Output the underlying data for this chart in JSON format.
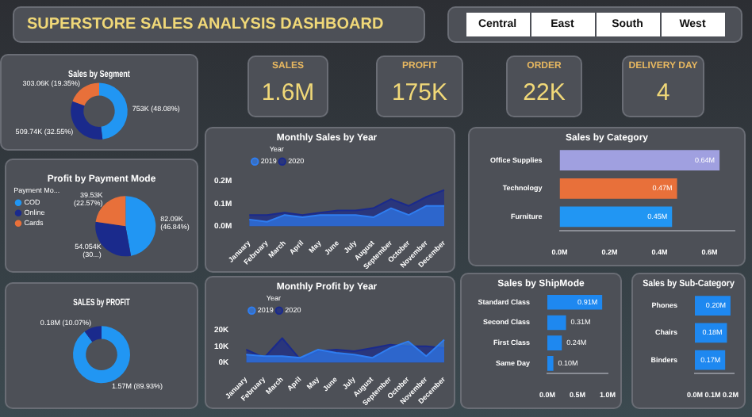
{
  "chart_data": [
    {
      "type": "other",
      "title": "SUPERSTORE SALES ANALYSIS  DASHBOARD"
    },
    {
      "type": "other",
      "annotations": [
        "Central",
        "East",
        "South",
        "West"
      ]
    },
    {
      "type": "donut",
      "title": "Sales by Segment",
      "categories": [
        null,
        null,
        null
      ],
      "values": [
        48.08,
        32.55,
        19.35
      ],
      "colors": [
        "#2196f3",
        "#1a2a8c",
        "#e8703a"
      ],
      "value_labels": [
        "753K (48.08%)",
        "509.74K (32.55%)",
        "303.06K (19.35%)"
      ]
    },
    {
      "type": "other",
      "title": "SALES",
      "annotations": [
        "1.6M"
      ]
    },
    {
      "type": "other",
      "title": "PROFIT",
      "annotations": [
        "175K"
      ]
    },
    {
      "type": "other",
      "title": "ORDER",
      "annotations": [
        "22K"
      ]
    },
    {
      "type": "other",
      "title": "DELIVERY DAY",
      "annotations": [
        "4"
      ]
    },
    {
      "type": "pie",
      "title": "Profit by Payment Mode",
      "legend_title": "Payment Mo...",
      "legend": "left",
      "categories": [
        "COD",
        "Online",
        "Cards"
      ],
      "values": [
        46.84,
        30,
        22.57
      ],
      "colors": [
        "#2196f3",
        "#1a2a8c",
        "#e8703a"
      ],
      "value_labels": [
        "82.09K (46.84%)",
        "54.054K (30...)",
        "39.53K (22.57%)"
      ]
    },
    {
      "type": "area",
      "title": "Monthly Sales by Year",
      "legend_title": "Year",
      "legend": "top left",
      "categories": [
        "January",
        "February",
        "March",
        "April",
        "May",
        "June",
        "July",
        "August",
        "September",
        "October",
        "November",
        "December"
      ],
      "ylim": [
        0,
        0.2
      ],
      "yticks": [
        {
          "value": 0,
          "label": "0.0M"
        },
        {
          "value": 0.1,
          "label": "0.1M"
        },
        {
          "value": 0.2,
          "label": "0.2M"
        }
      ],
      "series": [
        {
          "name": "2019",
          "color": "#2f7df0",
          "values": [
            0.03,
            0.02,
            0.05,
            0.04,
            0.05,
            0.05,
            0.05,
            0.04,
            0.08,
            0.05,
            0.09,
            0.09
          ]
        },
        {
          "name": "2020",
          "color": "#1a2a8c",
          "values": [
            0.05,
            0.05,
            0.06,
            0.05,
            0.06,
            0.07,
            0.07,
            0.08,
            0.12,
            0.09,
            0.13,
            0.16
          ]
        }
      ]
    },
    {
      "type": "bar",
      "title": "Sales by Category",
      "orientation": "horizontal",
      "categories": [
        "Office Supplies",
        "Technology",
        "Furniture"
      ],
      "values": [
        0.64,
        0.47,
        0.45
      ],
      "colors": [
        "#a0a0e0",
        "#e8703a",
        "#2196f3"
      ],
      "value_labels": [
        "0.64M",
        "0.47M",
        "0.45M"
      ],
      "xlim": [
        0,
        0.7
      ],
      "xticks": [
        {
          "value": 0,
          "label": "0.0M"
        },
        {
          "value": 0.2,
          "label": "0.2M"
        },
        {
          "value": 0.4,
          "label": "0.4M"
        },
        {
          "value": 0.6,
          "label": "0.6M"
        }
      ]
    },
    {
      "type": "donut",
      "title": "SALES by PROFIT",
      "categories": [
        null,
        null
      ],
      "values": [
        89.93,
        10.07
      ],
      "colors": [
        "#2196f3",
        "#1a2a8c"
      ],
      "value_labels": [
        "1.57M (89.93%)",
        "0.18M (10.07%)"
      ]
    },
    {
      "type": "area",
      "title": "Monthly Profit by Year",
      "legend_title": "Year",
      "legend": "top left",
      "categories": [
        "January",
        "February",
        "March",
        "April",
        "May",
        "June",
        "July",
        "August",
        "September",
        "October",
        "November",
        "December"
      ],
      "ylim": [
        0,
        20
      ],
      "yticks": [
        {
          "value": 0,
          "label": "0K"
        },
        {
          "value": 10,
          "label": "10K"
        },
        {
          "value": 20,
          "label": "20K"
        }
      ],
      "series": [
        {
          "name": "2019",
          "color": "#2f7df0",
          "values": [
            5,
            4,
            4,
            3,
            8,
            6,
            5,
            3,
            9,
            13,
            4,
            14
          ]
        },
        {
          "name": "2020",
          "color": "#1a2a8c",
          "values": [
            8,
            3,
            15,
            2,
            7,
            8,
            7,
            9,
            11,
            10,
            10,
            9
          ]
        }
      ]
    },
    {
      "type": "bar",
      "title": "Sales by ShipMode",
      "orientation": "horizontal",
      "categories": [
        "Standard Class",
        "Second Class",
        "First Class",
        "Same Day"
      ],
      "values": [
        0.91,
        0.31,
        0.24,
        0.1
      ],
      "colors": [
        "#1e88f0",
        "#1e88f0",
        "#1e88f0",
        "#1e88f0"
      ],
      "value_labels": [
        "0.91M",
        "0.31M",
        "0.24M",
        "0.10M"
      ],
      "xlim": [
        0,
        1
      ],
      "xticks": [
        {
          "value": 0,
          "label": "0.0M"
        },
        {
          "value": 0.5,
          "label": "0.5M"
        },
        {
          "value": 1,
          "label": "1.0M"
        }
      ]
    },
    {
      "type": "bar",
      "title": "Sales by Sub-Category",
      "orientation": "horizontal",
      "categories": [
        "Phones",
        "Chairs",
        "Binders"
      ],
      "values": [
        0.2,
        0.18,
        0.17
      ],
      "colors": [
        "#1e88f0",
        "#1e88f0",
        "#1e88f0"
      ],
      "value_labels": [
        "0.20M",
        "0.18M",
        "0.17M"
      ],
      "xlim": [
        0,
        0.22
      ],
      "xticks": [
        {
          "value": 0,
          "label": "0.0M"
        },
        {
          "value": 0.1,
          "label": "0.1M"
        },
        {
          "value": 0.2,
          "label": "0.2M"
        }
      ]
    }
  ]
}
